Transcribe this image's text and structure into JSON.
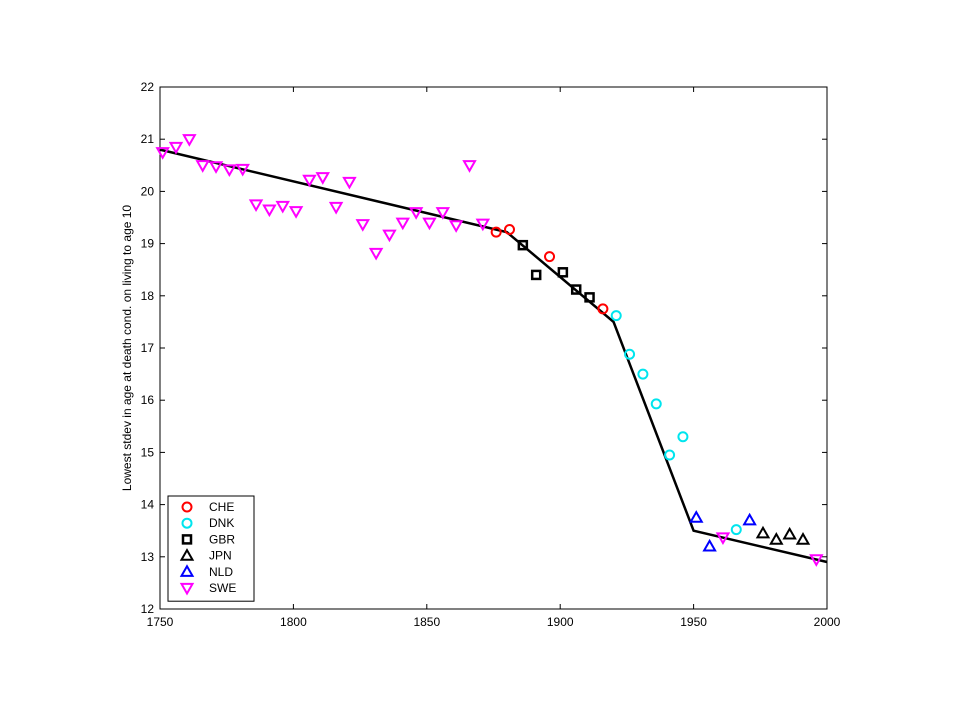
{
  "chart_data": {
    "type": "scatter",
    "title": "",
    "xlabel": "",
    "ylabel": "Lowest stdev in age at death cond. on living to age 10",
    "xlim": [
      1750,
      2000
    ],
    "ylim": [
      12,
      22
    ],
    "xticks": [
      "1750",
      "1800",
      "1850",
      "1900",
      "1950",
      "2000"
    ],
    "yticks": [
      "12",
      "13",
      "14",
      "15",
      "16",
      "17",
      "18",
      "19",
      "20",
      "21",
      "22"
    ],
    "grid": false,
    "legend_position": "bottom-left",
    "series": [
      {
        "name": "CHE",
        "marker": "circle",
        "color": "#ff0000",
        "points": [
          [
            1876,
            19.22
          ],
          [
            1881,
            19.27
          ],
          [
            1896,
            18.75
          ],
          [
            1916,
            17.75
          ]
        ]
      },
      {
        "name": "DNK",
        "marker": "circle",
        "color": "#00e5ee",
        "points": [
          [
            1921,
            17.62
          ],
          [
            1926,
            16.88
          ],
          [
            1931,
            16.5
          ],
          [
            1936,
            15.93
          ],
          [
            1941,
            14.95
          ],
          [
            1946,
            15.3
          ],
          [
            1966,
            13.52
          ]
        ]
      },
      {
        "name": "GBR",
        "marker": "square",
        "color": "#000000",
        "points": [
          [
            1886,
            18.97
          ],
          [
            1891,
            18.4
          ],
          [
            1901,
            18.45
          ],
          [
            1906,
            18.12
          ],
          [
            1911,
            17.97
          ]
        ]
      },
      {
        "name": "JPN",
        "marker": "triangle-up",
        "color": "#000000",
        "points": [
          [
            1976,
            13.45
          ],
          [
            1981,
            13.33
          ],
          [
            1986,
            13.43
          ],
          [
            1991,
            13.33
          ]
        ]
      },
      {
        "name": "NLD",
        "marker": "triangle-up",
        "color": "#0000ff",
        "points": [
          [
            1951,
            13.75
          ],
          [
            1956,
            13.2
          ],
          [
            1971,
            13.7
          ]
        ]
      },
      {
        "name": "SWE",
        "marker": "triangle-down",
        "color": "#ff00ff",
        "points": [
          [
            1751,
            20.75
          ],
          [
            1756,
            20.85
          ],
          [
            1761,
            21.0
          ],
          [
            1766,
            20.5
          ],
          [
            1771,
            20.48
          ],
          [
            1776,
            20.42
          ],
          [
            1781,
            20.43
          ],
          [
            1786,
            19.75
          ],
          [
            1791,
            19.65
          ],
          [
            1796,
            19.72
          ],
          [
            1801,
            19.62
          ],
          [
            1806,
            20.22
          ],
          [
            1811,
            20.27
          ],
          [
            1816,
            19.7
          ],
          [
            1821,
            20.18
          ],
          [
            1826,
            19.37
          ],
          [
            1831,
            18.82
          ],
          [
            1836,
            19.17
          ],
          [
            1841,
            19.4
          ],
          [
            1846,
            19.6
          ],
          [
            1851,
            19.4
          ],
          [
            1856,
            19.6
          ],
          [
            1861,
            19.35
          ],
          [
            1866,
            20.5
          ],
          [
            1871,
            19.38
          ],
          [
            1961,
            13.37
          ],
          [
            1996,
            12.95
          ]
        ]
      }
    ],
    "fit_line": {
      "color": "#000000",
      "points": [
        [
          1750,
          20.8
        ],
        [
          1880,
          19.22
        ],
        [
          1920,
          17.5
        ],
        [
          1950,
          13.5
        ],
        [
          2000,
          12.9
        ]
      ]
    }
  }
}
